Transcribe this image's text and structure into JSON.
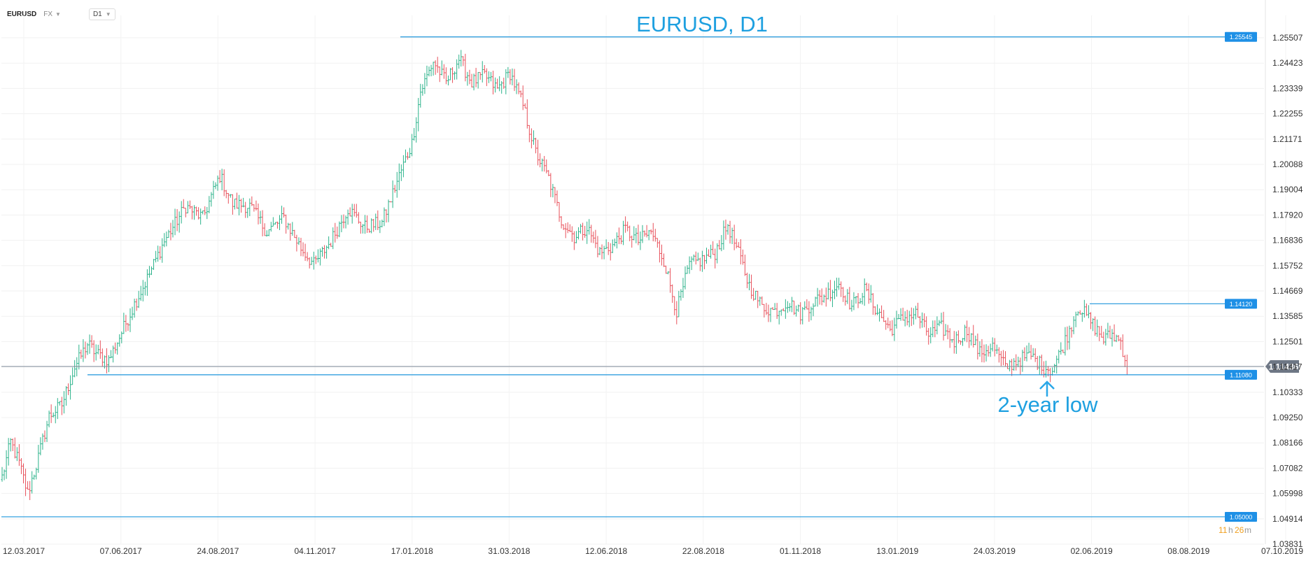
{
  "toolbar": {
    "symbol": "EURUSD",
    "market": "FX",
    "timeframe": "D1"
  },
  "chart_data": {
    "type": "ohlc",
    "title": "EURUSD, D1",
    "annotation": "2-year low",
    "countdown": {
      "hours": "11",
      "h_suffix": "h",
      "minutes": "26",
      "m_suffix": "m"
    },
    "x_ticks": [
      "12.03.2017",
      "07.06.2017",
      "24.08.2017",
      "04.11.2017",
      "17.01.2018",
      "31.03.2018",
      "12.06.2018",
      "22.08.2018",
      "01.11.2018",
      "13.01.2019",
      "24.03.2019",
      "02.06.2019",
      "08.08.2019",
      "07.10.2019"
    ],
    "y_ticks": [
      "1.25507",
      "1.24423",
      "1.23339",
      "1.22255",
      "1.21171",
      "1.20088",
      "1.19004",
      "1.17920",
      "1.16836",
      "1.15752",
      "1.14669",
      "1.13585",
      "1.12501",
      "1.11417",
      "1.10333",
      "1.09250",
      "1.08166",
      "1.07082",
      "1.05998",
      "1.04914",
      "1.03831"
    ],
    "ylim": [
      1.03831,
      1.25507
    ],
    "current_price": "1.11436",
    "levels": [
      {
        "label": "1.25545",
        "value": 1.25545
      },
      {
        "label": "1.14120",
        "value": 1.1412
      },
      {
        "label": "1.11080",
        "value": 1.1108
      },
      {
        "label": "1.05000",
        "value": 1.05
      }
    ],
    "path_anchors": [
      [
        0,
        1.067
      ],
      [
        4,
        1.082
      ],
      [
        8,
        1.073
      ],
      [
        12,
        1.06
      ],
      [
        16,
        1.072
      ],
      [
        22,
        1.093
      ],
      [
        28,
        1.098
      ],
      [
        34,
        1.114
      ],
      [
        40,
        1.124
      ],
      [
        44,
        1.12
      ],
      [
        50,
        1.117
      ],
      [
        55,
        1.127
      ],
      [
        62,
        1.141
      ],
      [
        68,
        1.152
      ],
      [
        76,
        1.168
      ],
      [
        86,
        1.183
      ],
      [
        94,
        1.178
      ],
      [
        102,
        1.196
      ],
      [
        108,
        1.184
      ],
      [
        116,
        1.183
      ],
      [
        124,
        1.172
      ],
      [
        132,
        1.178
      ],
      [
        140,
        1.165
      ],
      [
        146,
        1.158
      ],
      [
        154,
        1.168
      ],
      [
        162,
        1.182
      ],
      [
        170,
        1.174
      ],
      [
        178,
        1.176
      ],
      [
        186,
        1.196
      ],
      [
        192,
        1.21
      ],
      [
        196,
        1.232
      ],
      [
        202,
        1.245
      ],
      [
        208,
        1.236
      ],
      [
        214,
        1.246
      ],
      [
        220,
        1.236
      ],
      [
        226,
        1.239
      ],
      [
        232,
        1.233
      ],
      [
        238,
        1.24
      ],
      [
        244,
        1.226
      ],
      [
        250,
        1.206
      ],
      [
        256,
        1.195
      ],
      [
        262,
        1.177
      ],
      [
        268,
        1.17
      ],
      [
        274,
        1.174
      ],
      [
        280,
        1.163
      ],
      [
        286,
        1.166
      ],
      [
        292,
        1.173
      ],
      [
        298,
        1.168
      ],
      [
        304,
        1.172
      ],
      [
        310,
        1.16
      ],
      [
        316,
        1.138
      ],
      [
        322,
        1.158
      ],
      [
        328,
        1.16
      ],
      [
        334,
        1.163
      ],
      [
        340,
        1.175
      ],
      [
        346,
        1.16
      ],
      [
        350,
        1.149
      ],
      [
        356,
        1.14
      ],
      [
        362,
        1.138
      ],
      [
        368,
        1.142
      ],
      [
        374,
        1.137
      ],
      [
        380,
        1.142
      ],
      [
        386,
        1.145
      ],
      [
        392,
        1.15
      ],
      [
        398,
        1.14
      ],
      [
        404,
        1.147
      ],
      [
        410,
        1.138
      ],
      [
        416,
        1.13
      ],
      [
        422,
        1.135
      ],
      [
        428,
        1.137
      ],
      [
        434,
        1.128
      ],
      [
        440,
        1.131
      ],
      [
        446,
        1.125
      ],
      [
        452,
        1.13
      ],
      [
        458,
        1.12
      ],
      [
        464,
        1.123
      ],
      [
        470,
        1.114
      ],
      [
        476,
        1.117
      ],
      [
        482,
        1.119
      ],
      [
        488,
        1.114
      ],
      [
        492,
        1.113
      ],
      [
        496,
        1.121
      ],
      [
        500,
        1.13
      ],
      [
        504,
        1.14
      ],
      [
        508,
        1.136
      ],
      [
        512,
        1.131
      ],
      [
        516,
        1.126
      ],
      [
        520,
        1.128
      ],
      [
        524,
        1.125
      ],
      [
        527,
        1.1144
      ]
    ]
  }
}
